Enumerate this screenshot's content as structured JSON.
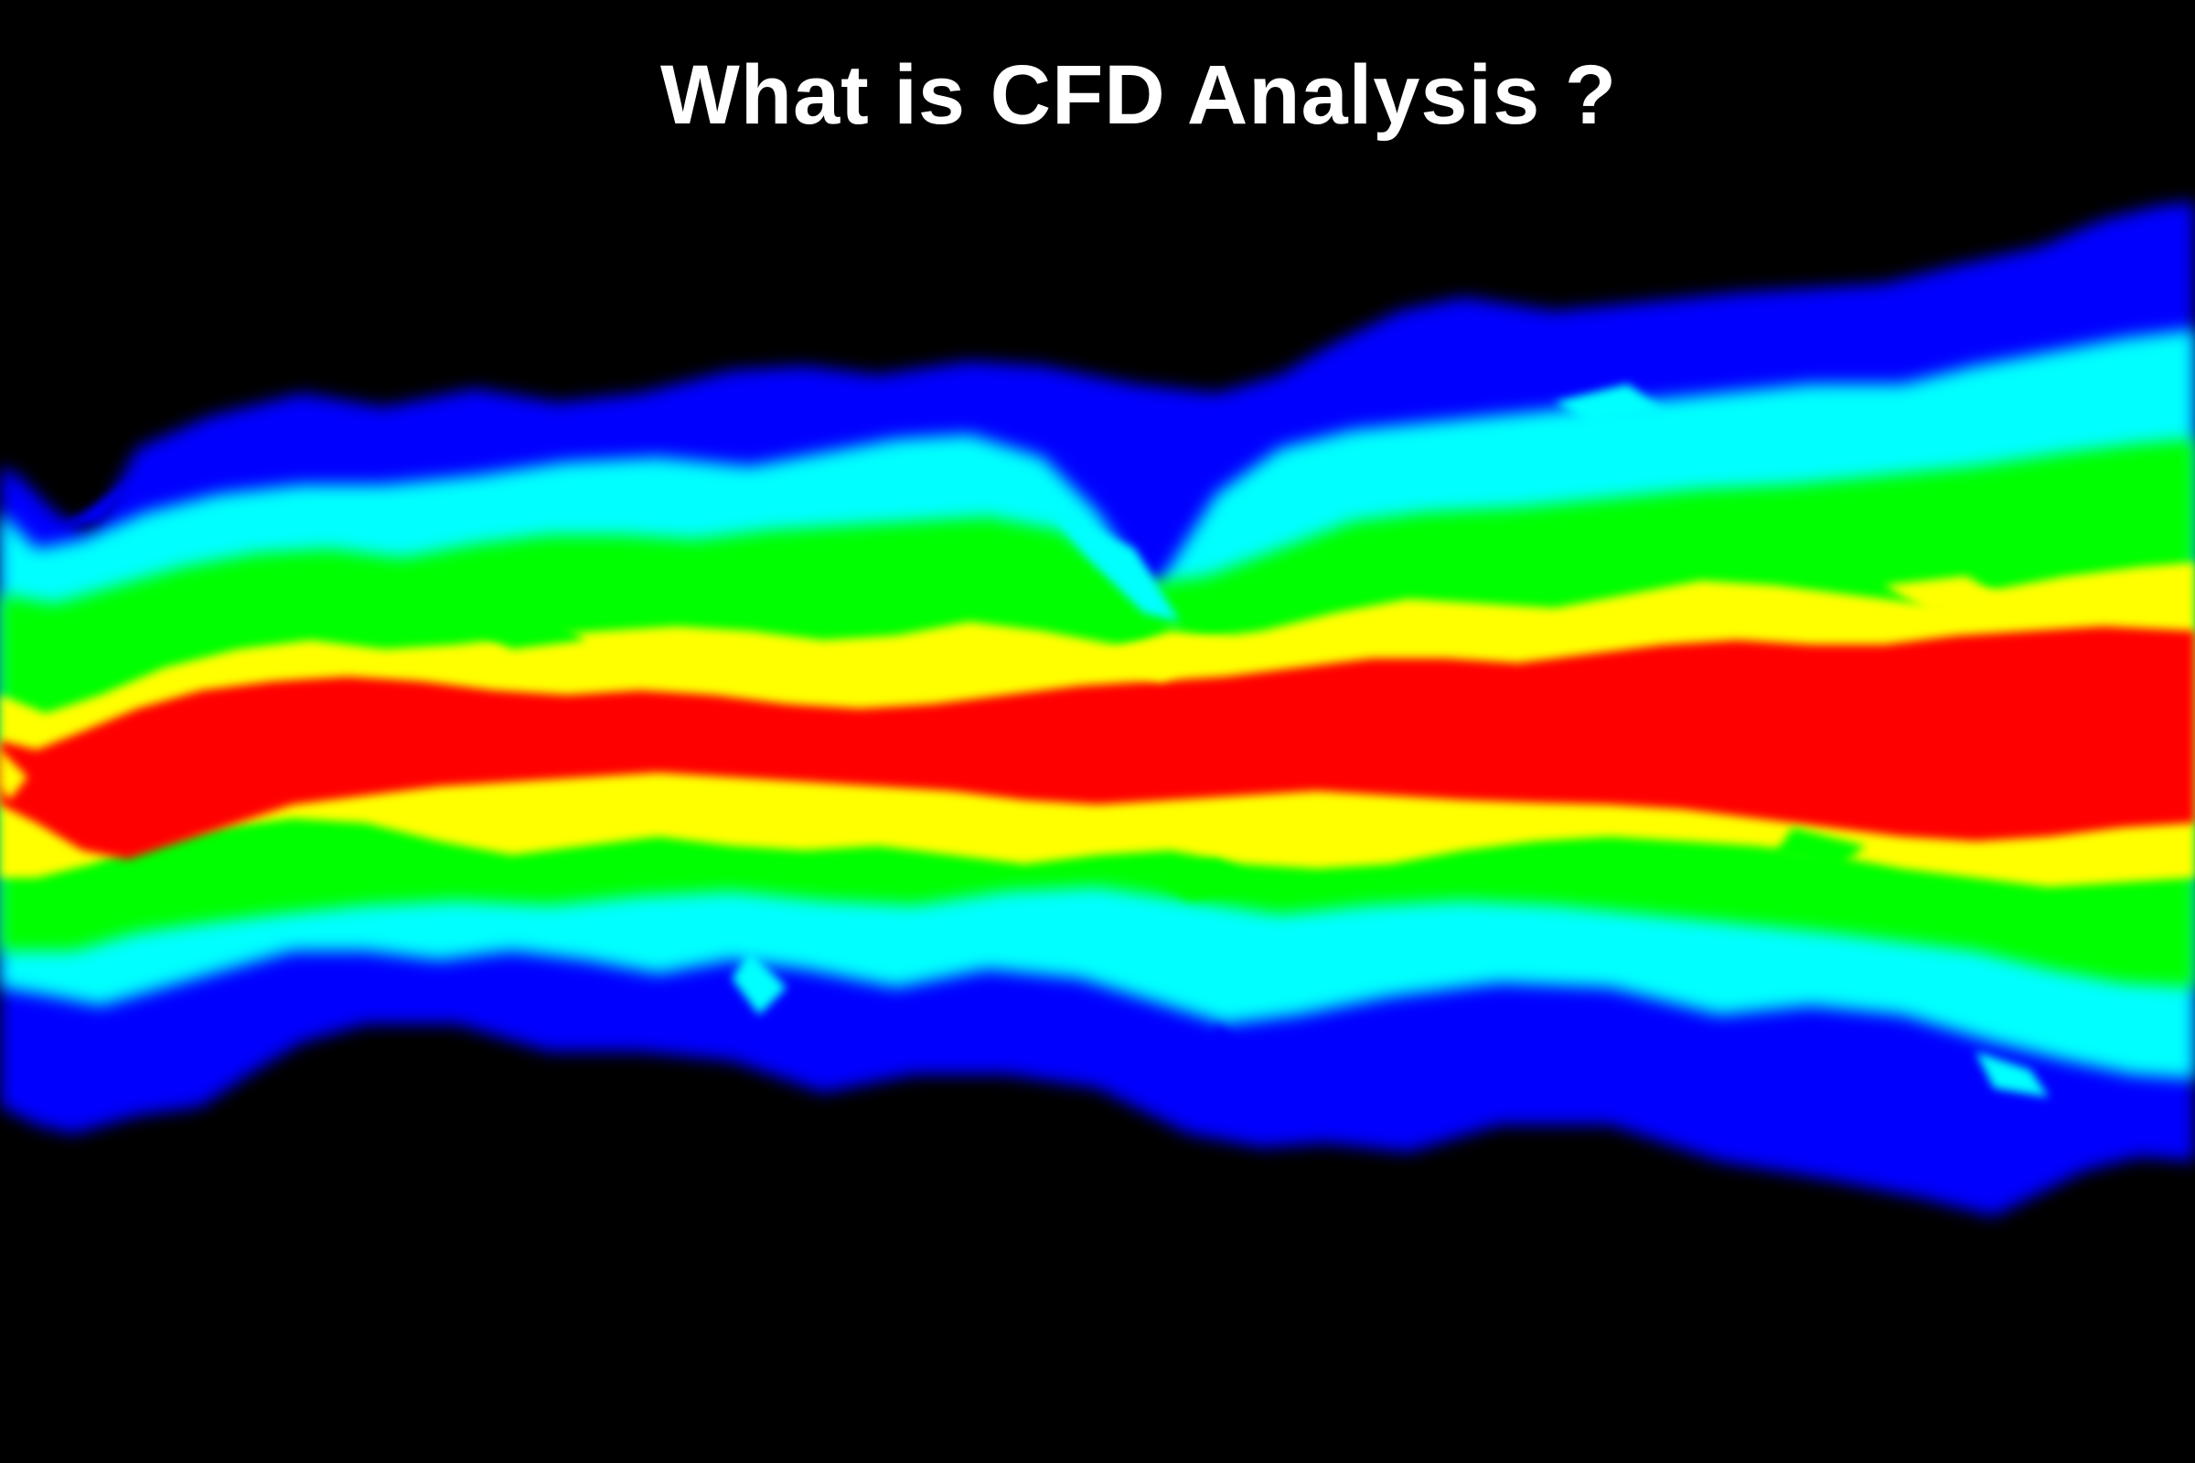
{
  "slide": {
    "title": "What is CFD Analysis ?"
  },
  "visual": {
    "subject": "flow-contour-plume",
    "background_color": "#000000",
    "contour_colors": [
      "#0000ff",
      "#00ffff",
      "#00ff00",
      "#ffff00",
      "#ff0000"
    ]
  }
}
